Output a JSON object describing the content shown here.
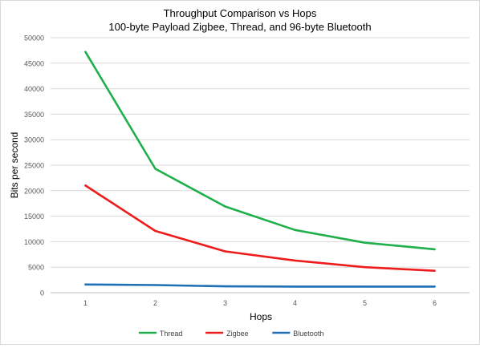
{
  "chart_data": {
    "type": "line",
    "title": "Throughput Comparison vs Hops",
    "subtitle": "100-byte Payload Zigbee, Thread, and 96-byte Bluetooth",
    "xlabel": "Hops",
    "ylabel": "Bits per second",
    "x": [
      1,
      2,
      3,
      4,
      5,
      6
    ],
    "x_tick_labels": [
      "1",
      "2",
      "3",
      "4",
      "5",
      "6"
    ],
    "ylim": [
      0,
      50000
    ],
    "y_tick_labels": [
      "0",
      "5000",
      "10000",
      "15000",
      "20000",
      "25000",
      "30000",
      "35000",
      "40000",
      "45000",
      "50000"
    ],
    "grid": true,
    "legend_position": "bottom",
    "series": [
      {
        "name": "Thread",
        "color": "#1fb04b",
        "values": [
          47200,
          24300,
          16900,
          12300,
          9800,
          8500
        ]
      },
      {
        "name": "Zigbee",
        "color": "#ee1c1c",
        "values": [
          21000,
          12100,
          8100,
          6300,
          5000,
          4300
        ]
      },
      {
        "name": "Bluetooth",
        "color": "#1f6fb5",
        "values": [
          1600,
          1500,
          1250,
          1200,
          1200,
          1200
        ]
      }
    ]
  }
}
